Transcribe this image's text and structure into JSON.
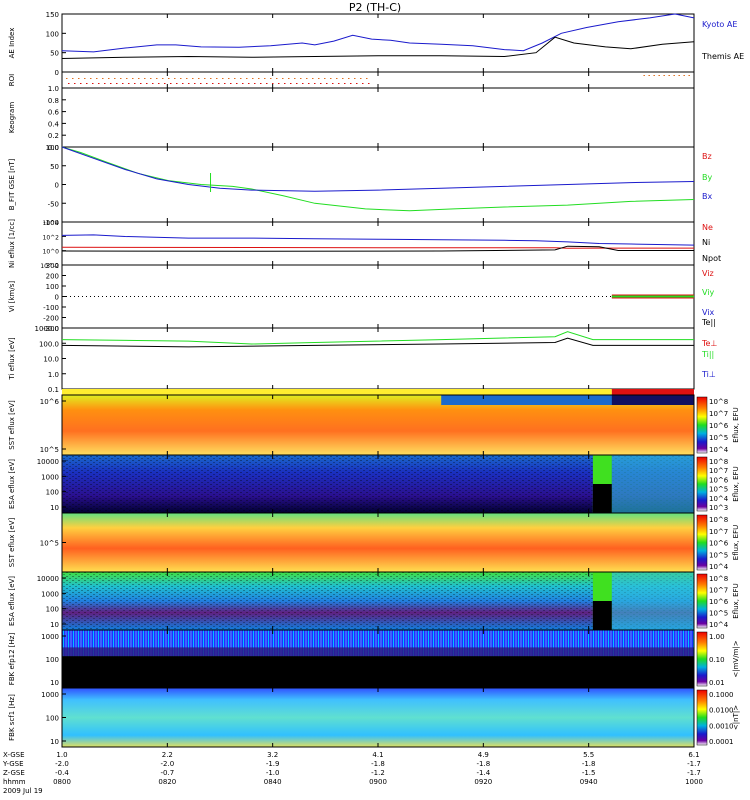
{
  "title": "P2 (TH-C)",
  "colors": {
    "blue": "#1a1acc",
    "green": "#22dd22",
    "red": "#dd1111",
    "black": "#000000",
    "orange": "#e07020"
  },
  "x_axis": {
    "times": [
      "0800",
      "0820",
      "0840",
      "0900",
      "0920",
      "0940",
      "1000"
    ],
    "rows": [
      {
        "name": "X-GSE",
        "values": [
          "1.0",
          "2.2",
          "3.2",
          "4.1",
          "4.9",
          "5.5",
          "6.1"
        ]
      },
      {
        "name": "Y-GSE",
        "values": [
          "-2.0",
          "-2.0",
          "-1.9",
          "-1.8",
          "-1.8",
          "-1.8",
          "-1.7"
        ]
      },
      {
        "name": "Z-GSE",
        "values": [
          "-0.4",
          "-0.7",
          "-1.0",
          "-1.2",
          "-1.4",
          "-1.5",
          "-1.7"
        ]
      },
      {
        "name": "hhmm",
        "values": [
          "0800",
          "0820",
          "0840",
          "0900",
          "0920",
          "0940",
          "1000"
        ]
      }
    ],
    "date": "2009 Jul 19"
  },
  "chart_data": [
    {
      "type": "line",
      "ylabel": "AE Index",
      "yticks": [
        "150",
        "100",
        "50",
        "0"
      ],
      "ylim": [
        0,
        150
      ],
      "series": [
        {
          "name": "Kyoto AE",
          "color": "#1a1acc",
          "points": [
            [
              0,
              55
            ],
            [
              5,
              52
            ],
            [
              10,
              62
            ],
            [
              15,
              70
            ],
            [
              18,
              70
            ],
            [
              22,
              65
            ],
            [
              28,
              64
            ],
            [
              33,
              68
            ],
            [
              38,
              75
            ],
            [
              40,
              70
            ],
            [
              43,
              80
            ],
            [
              46,
              95
            ],
            [
              49,
              85
            ],
            [
              52,
              82
            ],
            [
              55,
              75
            ],
            [
              60,
              72
            ],
            [
              65,
              68
            ],
            [
              70,
              58
            ],
            [
              73,
              55
            ],
            [
              76,
              75
            ],
            [
              79,
              100
            ],
            [
              83,
              115
            ],
            [
              88,
              130
            ],
            [
              93,
              140
            ],
            [
              97,
              150
            ],
            [
              100,
              140
            ]
          ]
        },
        {
          "name": "Themis AE",
          "color": "#000000",
          "points": [
            [
              0,
              35
            ],
            [
              10,
              38
            ],
            [
              20,
              40
            ],
            [
              30,
              38
            ],
            [
              40,
              40
            ],
            [
              50,
              42
            ],
            [
              60,
              42
            ],
            [
              70,
              40
            ],
            [
              75,
              50
            ],
            [
              78,
              90
            ],
            [
              81,
              75
            ],
            [
              86,
              65
            ],
            [
              90,
              60
            ],
            [
              95,
              72
            ],
            [
              100,
              78
            ]
          ]
        }
      ]
    },
    {
      "type": "line",
      "ylabel": "ROI",
      "yticks": [],
      "series": []
    },
    {
      "type": "line",
      "ylabel": "Keogram",
      "yticks": [
        "1.0",
        "0.8",
        "0.6",
        "0.4",
        "0.2",
        "0.0"
      ],
      "ylim": [
        0,
        1
      ],
      "series": []
    },
    {
      "type": "line",
      "ylabel": "B_FIT GSE [nT]",
      "yticks": [
        "100",
        "50",
        "0",
        "-50",
        "-100"
      ],
      "ylim": [
        -100,
        100
      ],
      "series": [
        {
          "name": "Bz",
          "color": "#dd1111",
          "points": []
        },
        {
          "name": "By",
          "color": "#22dd22",
          "points": [
            [
              0,
              100
            ],
            [
              3,
              85
            ],
            [
              7,
              60
            ],
            [
              12,
              30
            ],
            [
              17,
              10
            ],
            [
              22,
              0
            ],
            [
              27,
              -5
            ],
            [
              30,
              -12
            ],
            [
              35,
              -30
            ],
            [
              40,
              -50
            ],
            [
              48,
              -65
            ],
            [
              55,
              -70
            ],
            [
              62,
              -65
            ],
            [
              70,
              -60
            ],
            [
              80,
              -55
            ],
            [
              90,
              -45
            ],
            [
              100,
              -40
            ]
          ]
        },
        {
          "name": "Bx",
          "color": "#1a1acc",
          "points": [
            [
              0,
              100
            ],
            [
              5,
              70
            ],
            [
              10,
              40
            ],
            [
              15,
              15
            ],
            [
              20,
              0
            ],
            [
              25,
              -10
            ],
            [
              30,
              -15
            ],
            [
              40,
              -18
            ],
            [
              50,
              -15
            ],
            [
              60,
              -10
            ],
            [
              70,
              -5
            ],
            [
              80,
              0
            ],
            [
              90,
              5
            ],
            [
              100,
              8
            ]
          ]
        }
      ]
    },
    {
      "type": "line",
      "ylabel": "Ni eflux [1/cc]",
      "yticks": [
        "10^4",
        "10^2",
        "10^0",
        "10^-2"
      ],
      "series": [
        {
          "name": "Ne",
          "color": "#dd1111",
          "points": [
            [
              0,
              0.3
            ],
            [
              30,
              0.25
            ],
            [
              60,
              0.2
            ],
            [
              78,
              0.2
            ],
            [
              80,
              0.1
            ],
            [
              85,
              0.15
            ],
            [
              100,
              0.15
            ]
          ]
        },
        {
          "name": "Ni",
          "color": "#1a1acc",
          "points": [
            [
              0,
              2.5
            ],
            [
              5,
              2.6
            ],
            [
              10,
              2.3
            ],
            [
              20,
              2.0
            ],
            [
              30,
              2.0
            ],
            [
              40,
              1.9
            ],
            [
              50,
              1.8
            ],
            [
              60,
              1.7
            ],
            [
              70,
              1.6
            ],
            [
              75,
              1.5
            ],
            [
              80,
              1.3
            ],
            [
              85,
              1.0
            ],
            [
              90,
              0.9
            ],
            [
              100,
              0.7
            ]
          ]
        },
        {
          "name": "Npot",
          "color": "#000000",
          "points": [
            [
              0,
              -0.4
            ],
            [
              30,
              -0.45
            ],
            [
              60,
              -0.4
            ],
            [
              78,
              -0.2
            ],
            [
              80,
              0.5
            ],
            [
              85,
              0.4
            ],
            [
              88,
              -0.3
            ],
            [
              100,
              -0.3
            ]
          ]
        }
      ]
    },
    {
      "type": "line",
      "ylabel": "Vi [km/s]",
      "yticks": [
        "300",
        "200",
        "100",
        "0",
        "-100",
        "-200",
        "-300"
      ],
      "ylim": [
        -300,
        300
      ],
      "series": [
        {
          "name": "Viz",
          "color": "#dd1111",
          "points": []
        },
        {
          "name": "Viy",
          "color": "#22dd22",
          "points": []
        },
        {
          "name": "Vix",
          "color": "#1a1acc",
          "points": []
        }
      ]
    },
    {
      "type": "line",
      "ylabel": "Ti eflux [eV]",
      "yticks": [
        "1000.0",
        "100.0",
        "10.0",
        "1.0",
        "0.1"
      ],
      "series": [
        {
          "name": "Te||",
          "color": "#000000",
          "points": [
            [
              0,
              2.0
            ],
            [
              20,
              1.9
            ],
            [
              40,
              2.0
            ],
            [
              60,
              2.1
            ],
            [
              78,
              2.2
            ],
            [
              80,
              2.5
            ],
            [
              84,
              2.0
            ],
            [
              100,
              2.0
            ]
          ]
        },
        {
          "name": "Te⊥",
          "color": "#dd1111",
          "points": []
        },
        {
          "name": "Ti||",
          "color": "#22dd22",
          "points": [
            [
              0,
              2.4
            ],
            [
              20,
              2.3
            ],
            [
              30,
              2.1
            ],
            [
              40,
              2.2
            ],
            [
              60,
              2.4
            ],
            [
              78,
              2.6
            ],
            [
              80,
              2.95
            ],
            [
              84,
              2.4
            ],
            [
              100,
              2.4
            ]
          ]
        },
        {
          "name": "Ti⊥",
          "color": "#1a1acc",
          "points": []
        }
      ]
    }
  ],
  "spectrograms": [
    {
      "ylabel": "SST eflux [eV]",
      "yticks": [
        "10^6",
        "10^5"
      ],
      "colorbar_label": "Eflux, EFU",
      "cb_ticks": [
        "10^8",
        "10^7",
        "10^6",
        "10^5",
        "10^4"
      ]
    },
    {
      "ylabel": "ESA eflux [eV]",
      "yticks": [
        "10000",
        "1000",
        "100",
        "10"
      ],
      "colorbar_label": "Eflux, EFU",
      "cb_ticks": [
        "10^8",
        "10^7",
        "10^6",
        "10^5",
        "10^4",
        "10^3"
      ]
    },
    {
      "ylabel": "SST eflux [eV]",
      "yticks": [
        "10^5"
      ],
      "colorbar_label": "Eflux, EFU",
      "cb_ticks": [
        "10^8",
        "10^7",
        "10^6",
        "10^5",
        "10^4"
      ]
    },
    {
      "ylabel": "ESA eflux [eV]",
      "yticks": [
        "10000",
        "1000",
        "100",
        "10"
      ],
      "colorbar_label": "Eflux, EFU",
      "cb_ticks": [
        "10^8",
        "10^7",
        "10^6",
        "10^5",
        "10^4"
      ]
    },
    {
      "ylabel": "FBK efp12 [Hz]",
      "yticks": [
        "1000",
        "100",
        "10"
      ],
      "colorbar_label": "<|mV/m|>",
      "cb_ticks": [
        "1.00",
        "0.10",
        "0.01"
      ]
    },
    {
      "ylabel": "FBK scf1 [Hz]",
      "yticks": [
        "1000",
        "100",
        "10"
      ],
      "colorbar_label": "<|nT|>",
      "cb_ticks": [
        "0.1000",
        "0.0100",
        "0.0010",
        "0.0001"
      ]
    }
  ]
}
